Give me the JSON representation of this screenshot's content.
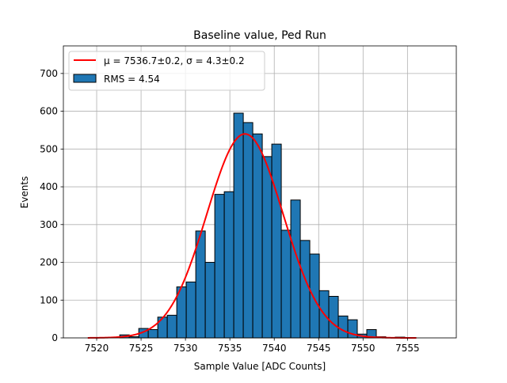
{
  "chart_data": {
    "type": "bar",
    "title": "Baseline value, Ped Run",
    "xlabel": "Sample Value [ADC Counts]",
    "ylabel": "Events",
    "xlim": [
      7516.25,
      7560.5
    ],
    "ylim": [
      0,
      773
    ],
    "xticks": [
      7520,
      7525,
      7530,
      7535,
      7540,
      7545,
      7550,
      7555
    ],
    "yticks": [
      0,
      100,
      200,
      300,
      400,
      500,
      600,
      700
    ],
    "grid": true,
    "legend_position": "top-left",
    "histogram": {
      "name": "RMS = 4.54",
      "color": "#1f77b4",
      "bin_start": 7522.6,
      "bin_width": 1.07,
      "values": [
        8,
        3,
        25,
        22,
        55,
        60,
        135,
        148,
        283,
        200,
        380,
        387,
        595,
        570,
        540,
        480,
        513,
        285,
        365,
        258,
        222,
        125,
        110,
        58,
        48,
        10,
        22,
        3,
        1,
        2
      ]
    },
    "fit": {
      "name": "μ = 7536.7±0.2, σ = 4.3±0.2",
      "color": "#ff0000",
      "mu": 7536.7,
      "sigma": 4.3,
      "amplitude": 540,
      "x_range": [
        7519,
        7556
      ]
    }
  }
}
